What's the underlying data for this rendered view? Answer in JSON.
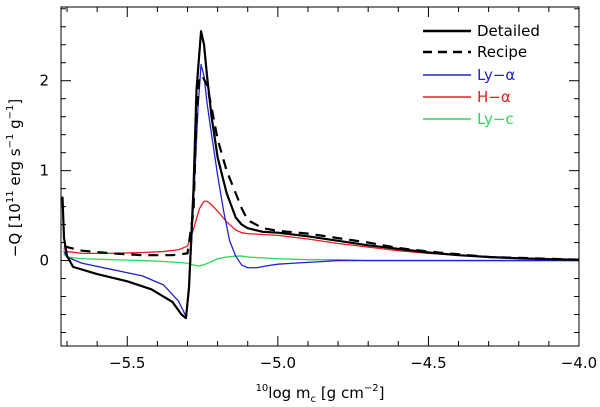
{
  "chart_data": {
    "type": "line",
    "title": "",
    "xlabel": "log m [g cm ]",
    "xlabel_parts": {
      "prefix": "10",
      "base": "log m",
      "sub": "c",
      "units": " [g cm",
      "exp": "−2",
      "close": "]"
    },
    "ylabel_parts": {
      "prefix": "−Q  [10",
      "exp1": "11",
      "mid": " erg s",
      "exp2": "−1",
      "space": " g",
      "exp3": "−1",
      "close": "]"
    },
    "xlim": [
      -5.72,
      -4.0
    ],
    "ylim": [
      -0.95,
      2.82
    ],
    "xticks": [
      -5.5,
      -5.0,
      -4.5,
      -4.0
    ],
    "xtick_labels": [
      "−5.5",
      "−5.0",
      "−4.5",
      "−4.0"
    ],
    "yticks": [
      0,
      1,
      2
    ],
    "ytick_labels": [
      "0",
      "1",
      "2"
    ],
    "legend_position": "top-right",
    "series": [
      {
        "name": "Detailed",
        "color": "#000000",
        "dash": "solid",
        "width": 2.2,
        "x": [
          -5.715,
          -5.71,
          -5.7,
          -5.68,
          -5.6,
          -5.5,
          -5.42,
          -5.35,
          -5.32,
          -5.305,
          -5.295,
          -5.28,
          -5.27,
          -5.255,
          -5.245,
          -5.235,
          -5.22,
          -5.2,
          -5.17,
          -5.14,
          -5.12,
          -5.1,
          -5.05,
          -5.0,
          -4.9,
          -4.8,
          -4.7,
          -4.6,
          -4.5,
          -4.4,
          -4.3,
          -4.2,
          -4.1,
          -4.0
        ],
        "y": [
          0.7,
          0.25,
          0.05,
          -0.07,
          -0.15,
          -0.23,
          -0.32,
          -0.46,
          -0.6,
          -0.64,
          -0.3,
          0.8,
          1.9,
          2.55,
          2.4,
          2.05,
          1.6,
          1.15,
          0.75,
          0.48,
          0.4,
          0.36,
          0.32,
          0.31,
          0.27,
          0.22,
          0.17,
          0.13,
          0.09,
          0.06,
          0.04,
          0.025,
          0.015,
          0.01
        ]
      },
      {
        "name": "Recipe",
        "color": "#000000",
        "dash": "dashed",
        "width": 2.2,
        "x": [
          -5.71,
          -5.7,
          -5.65,
          -5.55,
          -5.45,
          -5.35,
          -5.3,
          -5.28,
          -5.27,
          -5.26,
          -5.25,
          -5.235,
          -5.22,
          -5.2,
          -5.17,
          -5.14,
          -5.12,
          -5.1,
          -5.05,
          -5.0,
          -4.9,
          -4.8,
          -4.7,
          -4.6,
          -4.5,
          -4.4,
          -4.3,
          -4.2,
          -4.1,
          -4.0
        ],
        "y": [
          0.16,
          0.15,
          0.11,
          0.08,
          0.06,
          0.06,
          0.08,
          0.55,
          1.6,
          2.05,
          2.05,
          1.95,
          1.7,
          1.35,
          1.0,
          0.75,
          0.58,
          0.45,
          0.36,
          0.33,
          0.3,
          0.25,
          0.2,
          0.14,
          0.1,
          0.07,
          0.04,
          0.03,
          0.02,
          0.01
        ]
      },
      {
        "name": "Ly−α",
        "color": "#2323c8",
        "dash": "solid",
        "width": 1.3,
        "x": [
          -5.71,
          -5.7,
          -5.65,
          -5.55,
          -5.45,
          -5.38,
          -5.33,
          -5.305,
          -5.295,
          -5.285,
          -5.275,
          -5.265,
          -5.255,
          -5.245,
          -5.235,
          -5.22,
          -5.2,
          -5.18,
          -5.16,
          -5.14,
          -5.12,
          -5.1,
          -5.07,
          -5.04,
          -5.0,
          -4.95,
          -4.9,
          -4.85,
          -4.8,
          -4.7,
          -4.6,
          -4.5,
          -4.0
        ],
        "y": [
          0.1,
          0.04,
          -0.03,
          -0.1,
          -0.17,
          -0.27,
          -0.45,
          -0.62,
          -0.35,
          0.3,
          1.0,
          1.7,
          2.18,
          2.05,
          1.75,
          1.4,
          0.95,
          0.55,
          0.22,
          0.05,
          -0.05,
          -0.08,
          -0.08,
          -0.06,
          -0.04,
          -0.03,
          -0.02,
          -0.01,
          0.0,
          0.0,
          0.0,
          0.0,
          0.0
        ]
      },
      {
        "name": "H−α",
        "color": "#e02020",
        "dash": "solid",
        "width": 1.3,
        "x": [
          -5.71,
          -5.7,
          -5.65,
          -5.55,
          -5.45,
          -5.38,
          -5.33,
          -5.3,
          -5.28,
          -5.26,
          -5.245,
          -5.235,
          -5.22,
          -5.2,
          -5.17,
          -5.14,
          -5.12,
          -5.1,
          -5.05,
          -5.0,
          -4.9,
          -4.8,
          -4.7,
          -4.6,
          -4.5,
          -4.4,
          -4.3,
          -4.2,
          -4.1,
          -4.0
        ],
        "y": [
          0.13,
          0.1,
          0.08,
          0.08,
          0.09,
          0.1,
          0.12,
          0.16,
          0.35,
          0.58,
          0.66,
          0.66,
          0.62,
          0.55,
          0.43,
          0.34,
          0.31,
          0.3,
          0.29,
          0.28,
          0.24,
          0.19,
          0.15,
          0.11,
          0.08,
          0.06,
          0.04,
          0.03,
          0.02,
          0.01
        ]
      },
      {
        "name": "Ly−c",
        "color": "#2dd85a",
        "dash": "solid",
        "width": 1.3,
        "x": [
          -5.71,
          -5.7,
          -5.65,
          -5.55,
          -5.45,
          -5.38,
          -5.33,
          -5.3,
          -5.28,
          -5.26,
          -5.24,
          -5.22,
          -5.2,
          -5.17,
          -5.14,
          -5.12,
          -5.1,
          -5.05,
          -5.0,
          -4.9,
          -4.8,
          -4.7,
          -4.6,
          -4.5,
          -4.0
        ],
        "y": [
          0.07,
          0.04,
          0.02,
          0.01,
          0.0,
          -0.01,
          -0.02,
          -0.03,
          -0.05,
          -0.06,
          -0.04,
          -0.01,
          0.02,
          0.04,
          0.05,
          0.05,
          0.04,
          0.03,
          0.02,
          0.01,
          0.01,
          0.0,
          0.0,
          0.0,
          0.0
        ]
      }
    ]
  }
}
